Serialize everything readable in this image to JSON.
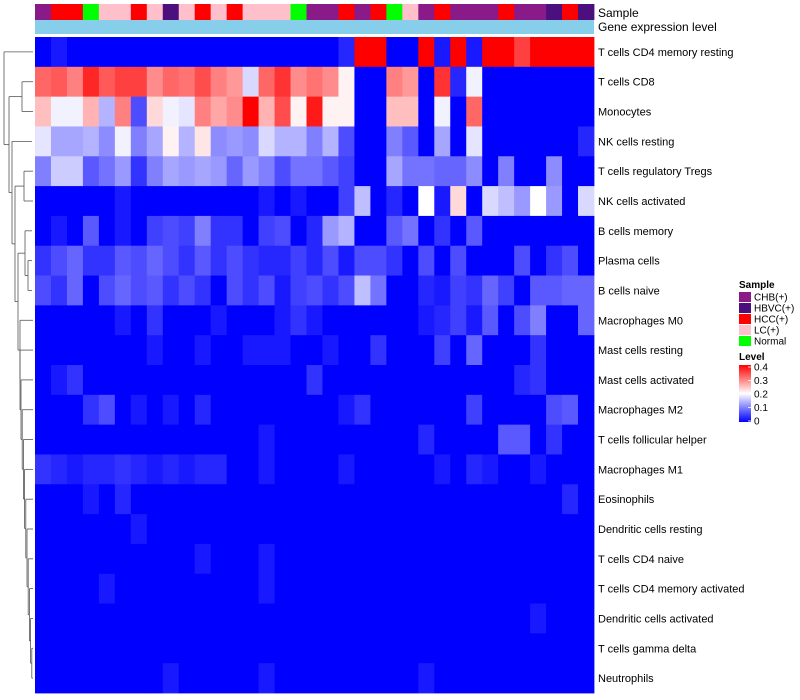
{
  "chart_data": {
    "type": "heatmap",
    "title": "",
    "annotation_tracks": {
      "sample_track_label": "Sample",
      "level_track_label": "Gene expression level"
    },
    "row_labels": [
      "T cells CD4 memory resting",
      "T cells CD8",
      "Monocytes",
      "NK cells resting",
      "T cells regulatory  Tregs",
      "NK cells activated",
      "B cells memory",
      "Plasma cells",
      "B cells naive",
      "Macrophages M0",
      "Mast cells resting",
      "Mast cells activated",
      "Macrophages M2",
      "T cells follicular helper",
      "Macrophages M1",
      "Eosinophils",
      "Dendritic cells resting",
      "T cells CD4 naive",
      "T cells CD4 memory activated",
      "Dendritic cells activated",
      "T cells gamma delta",
      "Neutrophils"
    ],
    "sample_groups": [
      "CHB(+)",
      "HBVC(+)",
      "HCC(+)",
      "LC(+)",
      "Normal"
    ],
    "sample_colors": {
      "CHB(+)": "#8B1A89",
      "HBVC(+)": "#4B0F7E",
      "HCC(+)": "#FF0000",
      "LC(+)": "#FFC0CB",
      "Normal": "#00FF00"
    },
    "column_samples": [
      "CHB(+)",
      "HCC(+)",
      "HCC(+)",
      "Normal",
      "LC(+)",
      "LC(+)",
      "HCC(+)",
      "LC(+)",
      "HBVC(+)",
      "LC(+)",
      "HCC(+)",
      "LC(+)",
      "HCC(+)",
      "LC(+)",
      "LC(+)",
      "LC(+)",
      "Normal",
      "CHB(+)",
      "CHB(+)",
      "HCC(+)",
      "CHB(+)",
      "HCC(+)",
      "Normal",
      "LC(+)",
      "CHB(+)",
      "HCC(+)",
      "CHB(+)",
      "CHB(+)",
      "CHB(+)",
      "HCC(+)",
      "CHB(+)",
      "CHB(+)",
      "HBVC(+)",
      "HCC(+)",
      "HBVC(+)"
    ],
    "gene_expression_level_color": "#87CEEB",
    "legend": {
      "sample_title": "Sample",
      "level_title": "Level",
      "level_ticks": [
        "0.4",
        "0.3",
        "0.2",
        "0.1",
        "0"
      ],
      "placement": "right"
    },
    "color_scale": {
      "min": 0,
      "max": 0.4,
      "low": "#0000FF",
      "mid": "#FFFFFF",
      "high": "#FF0000",
      "mid_value": 0.2
    },
    "values": [
      [
        0.0,
        0.02,
        0.0,
        0.0,
        0.0,
        0.0,
        0.0,
        0.0,
        0.0,
        0.0,
        0.0,
        0.0,
        0.0,
        0.0,
        0.0,
        0.0,
        0.0,
        0.0,
        0.0,
        0.03,
        0.4,
        0.4,
        0.0,
        0.0,
        0.4,
        0.02,
        0.4,
        0.02,
        0.4,
        0.4,
        0.35,
        0.4,
        0.4,
        0.4,
        0.4
      ],
      [
        0.32,
        0.33,
        0.3,
        0.37,
        0.33,
        0.35,
        0.35,
        0.29,
        0.32,
        0.31,
        0.34,
        0.3,
        0.28,
        0.17,
        0.32,
        0.36,
        0.29,
        0.31,
        0.29,
        0.21,
        0.0,
        0.0,
        0.3,
        0.28,
        0.0,
        0.36,
        0.03,
        0.19,
        0.0,
        0.0,
        0.0,
        0.0,
        0.0,
        0.0,
        0.0
      ],
      [
        0.25,
        0.19,
        0.19,
        0.26,
        0.14,
        0.3,
        0.06,
        0.23,
        0.19,
        0.18,
        0.3,
        0.27,
        0.29,
        0.4,
        0.26,
        0.34,
        0.21,
        0.38,
        0.21,
        0.21,
        0.0,
        0.0,
        0.25,
        0.25,
        0.0,
        0.19,
        0.0,
        0.32,
        0.0,
        0.0,
        0.0,
        0.0,
        0.0,
        0.0,
        0.0
      ],
      [
        0.18,
        0.13,
        0.13,
        0.14,
        0.11,
        0.19,
        0.1,
        0.13,
        0.21,
        0.14,
        0.22,
        0.11,
        0.12,
        0.11,
        0.17,
        0.14,
        0.14,
        0.1,
        0.14,
        0.06,
        0.0,
        0.0,
        0.1,
        0.07,
        0.0,
        0.13,
        0.0,
        0.18,
        0.0,
        0.0,
        0.0,
        0.0,
        0.0,
        0.0,
        0.03
      ],
      [
        0.1,
        0.16,
        0.16,
        0.07,
        0.09,
        0.12,
        0.04,
        0.1,
        0.13,
        0.12,
        0.13,
        0.12,
        0.08,
        0.12,
        0.1,
        0.06,
        0.09,
        0.09,
        0.07,
        0.05,
        0.0,
        0.0,
        0.13,
        0.09,
        0.09,
        0.08,
        0.08,
        0.11,
        0.0,
        0.1,
        0.0,
        0.0,
        0.11,
        0.0,
        0.0
      ],
      [
        0.0,
        0.0,
        0.0,
        0.0,
        0.0,
        0.02,
        0.0,
        0.0,
        0.0,
        0.0,
        0.0,
        0.0,
        0.0,
        0.0,
        0.02,
        0.0,
        0.02,
        0.0,
        0.0,
        0.05,
        0.15,
        0.0,
        0.03,
        0.0,
        0.2,
        0.02,
        0.23,
        0.0,
        0.17,
        0.15,
        0.12,
        0.2,
        0.12,
        0.0,
        0.17
      ],
      [
        0.0,
        0.02,
        0.0,
        0.07,
        0.0,
        0.02,
        0.0,
        0.05,
        0.06,
        0.05,
        0.1,
        0.04,
        0.04,
        0.0,
        0.05,
        0.06,
        0.0,
        0.03,
        0.12,
        0.14,
        0.0,
        0.0,
        0.07,
        0.09,
        0.0,
        0.04,
        0.0,
        0.07,
        0.0,
        0.0,
        0.0,
        0.0,
        0.0,
        0.0,
        0.0
      ],
      [
        0.04,
        0.06,
        0.08,
        0.04,
        0.04,
        0.07,
        0.06,
        0.08,
        0.06,
        0.04,
        0.07,
        0.04,
        0.06,
        0.04,
        0.03,
        0.03,
        0.05,
        0.03,
        0.06,
        0.02,
        0.06,
        0.06,
        0.04,
        0.0,
        0.06,
        0.0,
        0.06,
        0.0,
        0.0,
        0.0,
        0.06,
        0.0,
        0.04,
        0.06,
        0.0
      ],
      [
        0.06,
        0.04,
        0.08,
        0.0,
        0.06,
        0.08,
        0.06,
        0.07,
        0.04,
        0.06,
        0.04,
        0.0,
        0.06,
        0.04,
        0.06,
        0.02,
        0.05,
        0.06,
        0.04,
        0.06,
        0.15,
        0.09,
        0.0,
        0.0,
        0.03,
        0.02,
        0.05,
        0.04,
        0.08,
        0.05,
        0.0,
        0.07,
        0.07,
        0.08,
        0.08
      ],
      [
        0.0,
        0.0,
        0.0,
        0.0,
        0.0,
        0.02,
        0.0,
        0.04,
        0.0,
        0.0,
        0.0,
        0.02,
        0.0,
        0.0,
        0.0,
        0.02,
        0.04,
        0.02,
        0.0,
        0.0,
        0.0,
        0.0,
        0.0,
        0.0,
        0.02,
        0.03,
        0.05,
        0.02,
        0.07,
        0.0,
        0.06,
        0.1,
        0.0,
        0.0,
        0.08
      ],
      [
        0.0,
        0.0,
        0.0,
        0.0,
        0.0,
        0.0,
        0.0,
        0.02,
        0.0,
        0.0,
        0.02,
        0.0,
        0.0,
        0.02,
        0.02,
        0.02,
        0.0,
        0.0,
        0.02,
        0.0,
        0.0,
        0.04,
        0.0,
        0.0,
        0.0,
        0.05,
        0.0,
        0.08,
        0.0,
        0.0,
        0.0,
        0.04,
        0.0,
        0.0,
        0.0
      ],
      [
        0.0,
        0.02,
        0.04,
        0.0,
        0.0,
        0.0,
        0.0,
        0.0,
        0.0,
        0.0,
        0.0,
        0.0,
        0.0,
        0.0,
        0.0,
        0.0,
        0.0,
        0.04,
        0.0,
        0.0,
        0.0,
        0.0,
        0.0,
        0.0,
        0.0,
        0.0,
        0.0,
        0.0,
        0.0,
        0.0,
        0.03,
        0.04,
        0.0,
        0.0,
        0.0
      ],
      [
        0.0,
        0.0,
        0.0,
        0.04,
        0.06,
        0.0,
        0.02,
        0.0,
        0.02,
        0.0,
        0.03,
        0.0,
        0.0,
        0.0,
        0.0,
        0.0,
        0.0,
        0.0,
        0.0,
        0.02,
        0.04,
        0.0,
        0.0,
        0.0,
        0.0,
        0.0,
        0.0,
        0.05,
        0.0,
        0.0,
        0.0,
        0.0,
        0.06,
        0.07,
        0.0
      ],
      [
        0.0,
        0.0,
        0.0,
        0.0,
        0.0,
        0.0,
        0.0,
        0.0,
        0.0,
        0.0,
        0.0,
        0.0,
        0.0,
        0.0,
        0.02,
        0.0,
        0.0,
        0.0,
        0.0,
        0.0,
        0.0,
        0.0,
        0.0,
        0.0,
        0.03,
        0.0,
        0.0,
        0.0,
        0.0,
        0.07,
        0.07,
        0.0,
        0.04,
        0.0,
        0.0
      ],
      [
        0.04,
        0.03,
        0.02,
        0.03,
        0.03,
        0.04,
        0.03,
        0.02,
        0.03,
        0.02,
        0.03,
        0.03,
        0.0,
        0.0,
        0.02,
        0.0,
        0.0,
        0.0,
        0.0,
        0.02,
        0.0,
        0.0,
        0.0,
        0.0,
        0.0,
        0.02,
        0.0,
        0.03,
        0.02,
        0.0,
        0.0,
        0.02,
        0.0,
        0.0,
        0.0
      ],
      [
        0.0,
        0.0,
        0.0,
        0.02,
        0.0,
        0.03,
        0.0,
        0.0,
        0.0,
        0.0,
        0.0,
        0.0,
        0.0,
        0.0,
        0.0,
        0.0,
        0.0,
        0.0,
        0.0,
        0.0,
        0.0,
        0.0,
        0.0,
        0.0,
        0.0,
        0.0,
        0.0,
        0.0,
        0.0,
        0.0,
        0.0,
        0.0,
        0.0,
        0.03,
        0.0
      ],
      [
        0.0,
        0.0,
        0.0,
        0.0,
        0.0,
        0.0,
        0.02,
        0.0,
        0.0,
        0.0,
        0.0,
        0.0,
        0.0,
        0.0,
        0.0,
        0.0,
        0.0,
        0.0,
        0.0,
        0.0,
        0.0,
        0.0,
        0.0,
        0.0,
        0.0,
        0.0,
        0.0,
        0.0,
        0.0,
        0.0,
        0.0,
        0.0,
        0.0,
        0.0,
        0.0
      ],
      [
        0.0,
        0.0,
        0.0,
        0.0,
        0.0,
        0.0,
        0.0,
        0.0,
        0.0,
        0.0,
        0.02,
        0.0,
        0.0,
        0.0,
        0.02,
        0.0,
        0.0,
        0.0,
        0.0,
        0.0,
        0.0,
        0.0,
        0.0,
        0.0,
        0.0,
        0.0,
        0.0,
        0.0,
        0.0,
        0.0,
        0.0,
        0.0,
        0.0,
        0.0,
        0.0
      ],
      [
        0.0,
        0.0,
        0.0,
        0.0,
        0.02,
        0.0,
        0.0,
        0.0,
        0.0,
        0.0,
        0.0,
        0.0,
        0.0,
        0.0,
        0.02,
        0.0,
        0.0,
        0.0,
        0.0,
        0.0,
        0.0,
        0.0,
        0.0,
        0.0,
        0.0,
        0.0,
        0.0,
        0.0,
        0.0,
        0.0,
        0.0,
        0.0,
        0.0,
        0.0,
        0.0
      ],
      [
        0.0,
        0.0,
        0.0,
        0.0,
        0.0,
        0.0,
        0.0,
        0.0,
        0.0,
        0.0,
        0.0,
        0.0,
        0.0,
        0.0,
        0.0,
        0.0,
        0.0,
        0.0,
        0.0,
        0.0,
        0.0,
        0.0,
        0.0,
        0.0,
        0.0,
        0.0,
        0.0,
        0.0,
        0.0,
        0.0,
        0.0,
        0.02,
        0.0,
        0.0,
        0.0
      ],
      [
        0.0,
        0.0,
        0.0,
        0.0,
        0.0,
        0.0,
        0.0,
        0.0,
        0.0,
        0.0,
        0.0,
        0.0,
        0.0,
        0.0,
        0.0,
        0.0,
        0.0,
        0.0,
        0.0,
        0.0,
        0.0,
        0.0,
        0.0,
        0.0,
        0.0,
        0.0,
        0.0,
        0.0,
        0.0,
        0.0,
        0.0,
        0.0,
        0.0,
        0.0,
        0.0
      ],
      [
        0.0,
        0.0,
        0.0,
        0.0,
        0.0,
        0.0,
        0.0,
        0.0,
        0.02,
        0.0,
        0.0,
        0.0,
        0.0,
        0.0,
        0.02,
        0.0,
        0.0,
        0.0,
        0.0,
        0.0,
        0.0,
        0.0,
        0.0,
        0.0,
        0.02,
        0.0,
        0.0,
        0.0,
        0.0,
        0.0,
        0.0,
        0.0,
        0.0,
        0.0,
        0.0
      ]
    ]
  }
}
